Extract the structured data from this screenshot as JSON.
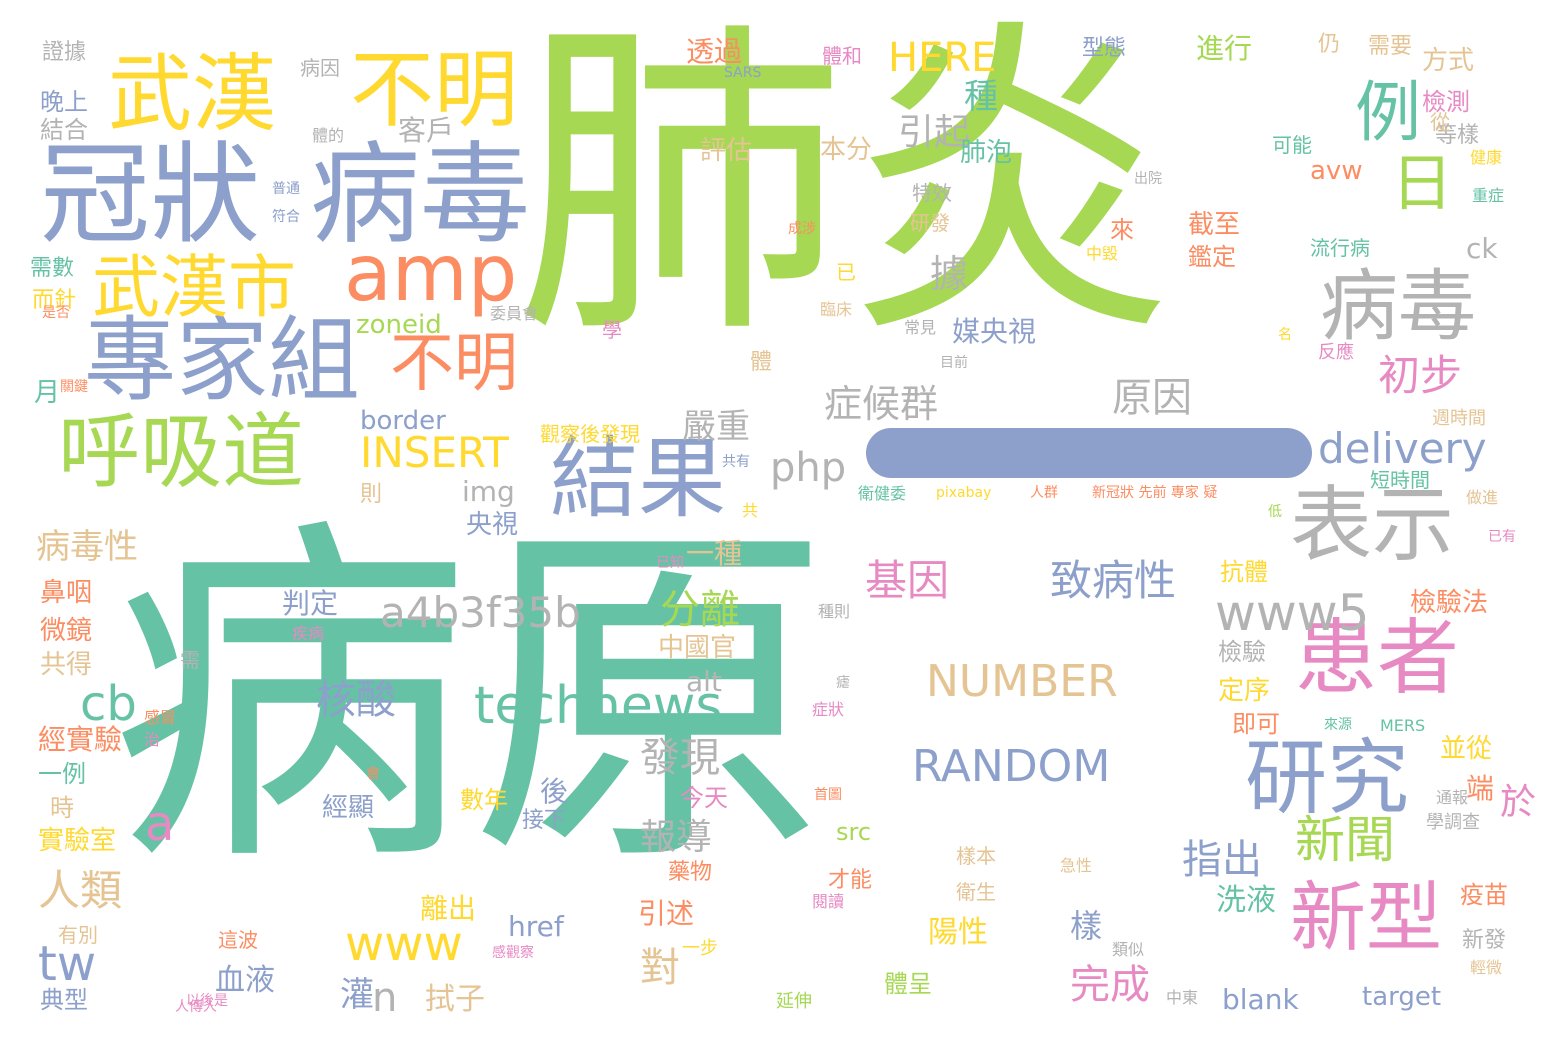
{
  "palette": {
    "green": "#66c2a5",
    "orange": "#fc8d62",
    "blue": "#8da0cb",
    "pink": "#e78ac3",
    "lime": "#a6d854",
    "yellow": "#ffd92f",
    "tan": "#e5c494",
    "gray": "#b3b3b3"
  },
  "bar_color": "#8da0cb",
  "words": [
    {
      "text": "病原",
      "color": "green"
    },
    {
      "text": "肺炎",
      "color": "lime"
    },
    {
      "text": "冠狀",
      "color": "blue"
    },
    {
      "text": "病毒",
      "color": "blue"
    },
    {
      "text": "武漢",
      "color": "yellow"
    },
    {
      "text": "不明",
      "color": "yellow"
    },
    {
      "text": "專家組",
      "color": "blue"
    },
    {
      "text": "呼吸道",
      "color": "lime"
    },
    {
      "text": "武漢市",
      "color": "yellow"
    },
    {
      "text": "amp",
      "color": "orange"
    },
    {
      "text": "結果",
      "color": "blue"
    },
    {
      "text": "不明",
      "color": "orange"
    },
    {
      "text": "例",
      "color": "green"
    },
    {
      "text": "日",
      "color": "lime"
    },
    {
      "text": "病毒",
      "color": "gray"
    },
    {
      "text": "表示",
      "color": "gray"
    },
    {
      "text": "患者",
      "color": "pink"
    },
    {
      "text": "研究",
      "color": "blue"
    },
    {
      "text": "新型",
      "color": "pink"
    },
    {
      "text": "technews",
      "color": "green"
    },
    {
      "text": "a4b3f35b",
      "color": "gray"
    },
    {
      "text": "www5",
      "color": "gray"
    },
    {
      "text": "delivery",
      "color": "blue"
    },
    {
      "text": "INSERT",
      "color": "yellow"
    },
    {
      "text": "NUMBER",
      "color": "tan"
    },
    {
      "text": "RANDOM",
      "color": "blue"
    },
    {
      "text": "HERE",
      "color": "yellow"
    },
    {
      "text": "php",
      "color": "gray"
    },
    {
      "text": "www",
      "color": "yellow"
    },
    {
      "text": "新聞",
      "color": "lime"
    },
    {
      "text": "初步",
      "color": "pink"
    },
    {
      "text": "原因",
      "color": "gray"
    },
    {
      "text": "症候群",
      "color": "gray"
    },
    {
      "text": "基因",
      "color": "pink"
    },
    {
      "text": "致病性",
      "color": "blue"
    },
    {
      "text": "核酸",
      "color": "blue"
    },
    {
      "text": "引起",
      "color": "gray"
    },
    {
      "text": "嚴重",
      "color": "gray"
    },
    {
      "text": "報導",
      "color": "gray"
    },
    {
      "text": "指出",
      "color": "blue"
    },
    {
      "text": "完成",
      "color": "pink"
    },
    {
      "text": "人類",
      "color": "tan"
    },
    {
      "text": "病毒性",
      "color": "tan"
    },
    {
      "text": "客戶",
      "color": "gray"
    },
    {
      "text": "進行",
      "color": "lime"
    },
    {
      "text": "評估",
      "color": "tan"
    },
    {
      "text": "本分",
      "color": "tan"
    },
    {
      "text": "透過",
      "color": "orange"
    },
    {
      "text": "zoneid",
      "color": "lime"
    },
    {
      "text": "border",
      "color": "blue"
    },
    {
      "text": "tw",
      "color": "blue"
    },
    {
      "text": "cb",
      "color": "green"
    },
    {
      "text": "a",
      "color": "pink"
    },
    {
      "text": "n",
      "color": "gray"
    },
    {
      "text": "img",
      "color": "gray"
    },
    {
      "text": "alt",
      "color": "gray"
    },
    {
      "text": "src",
      "color": "lime"
    },
    {
      "text": "href",
      "color": "blue"
    },
    {
      "text": "blank",
      "color": "blue"
    },
    {
      "text": "target",
      "color": "blue"
    },
    {
      "text": "avw",
      "color": "orange"
    },
    {
      "text": "ck",
      "color": "gray"
    },
    {
      "text": "晚上",
      "color": "blue"
    },
    {
      "text": "結合",
      "color": "gray"
    },
    {
      "text": "證據",
      "color": "gray"
    },
    {
      "text": "病因",
      "color": "gray"
    },
    {
      "text": "型態",
      "color": "blue"
    },
    {
      "text": "方式",
      "color": "tan"
    },
    {
      "text": "檢測",
      "color": "pink"
    },
    {
      "text": "等樣",
      "color": "gray"
    },
    {
      "text": "可能",
      "color": "green"
    },
    {
      "text": "流行病",
      "color": "green"
    },
    {
      "text": "截至",
      "color": "orange"
    },
    {
      "text": "鑑定",
      "color": "orange"
    },
    {
      "text": "特效",
      "color": "gray"
    },
    {
      "text": "研發",
      "color": "tan"
    },
    {
      "text": "分離",
      "color": "lime"
    },
    {
      "text": "中國官",
      "color": "tan"
    },
    {
      "text": "一種",
      "color": "tan"
    },
    {
      "text": "央視",
      "color": "blue"
    },
    {
      "text": "判定",
      "color": "blue"
    },
    {
      "text": "鼻咽",
      "color": "orange"
    },
    {
      "text": "微鏡",
      "color": "orange"
    },
    {
      "text": "共得",
      "color": "tan"
    },
    {
      "text": "經實驗",
      "color": "orange"
    },
    {
      "text": "一例",
      "color": "green"
    },
    {
      "text": "實驗室",
      "color": "yellow"
    },
    {
      "text": "有別",
      "color": "tan"
    },
    {
      "text": "典型",
      "color": "blue"
    },
    {
      "text": "血液",
      "color": "blue"
    },
    {
      "text": "灌",
      "color": "blue"
    },
    {
      "text": "拭子",
      "color": "tan"
    },
    {
      "text": "經顯",
      "color": "blue"
    },
    {
      "text": "接下",
      "color": "blue"
    },
    {
      "text": "今天",
      "color": "pink"
    },
    {
      "text": "數年",
      "color": "yellow"
    },
    {
      "text": "引述",
      "color": "orange"
    },
    {
      "text": "離出",
      "color": "yellow"
    },
    {
      "text": "陽性",
      "color": "yellow"
    },
    {
      "text": "洗液",
      "color": "green"
    },
    {
      "text": "並從",
      "color": "yellow"
    },
    {
      "text": "疫苗",
      "color": "orange"
    },
    {
      "text": "檢驗法",
      "color": "orange"
    },
    {
      "text": "抗體",
      "color": "yellow"
    },
    {
      "text": "短時間",
      "color": "green"
    },
    {
      "text": "檢驗",
      "color": "gray"
    },
    {
      "text": "定序",
      "color": "yellow"
    },
    {
      "text": "即可",
      "color": "orange"
    },
    {
      "text": "端",
      "color": "orange"
    },
    {
      "text": "新發",
      "color": "gray"
    },
    {
      "text": "後",
      "color": "blue"
    },
    {
      "text": "對",
      "color": "tan"
    },
    {
      "text": "於",
      "color": "pink"
    },
    {
      "text": "樣",
      "color": "blue"
    },
    {
      "text": "種",
      "color": "green"
    },
    {
      "text": "據",
      "color": "gray"
    },
    {
      "text": "肺泡",
      "color": "green"
    },
    {
      "text": "媒央視",
      "color": "blue"
    },
    {
      "text": "發現",
      "color": "gray"
    },
    {
      "text": "需數",
      "color": "green"
    },
    {
      "text": "而針",
      "color": "yellow"
    },
    {
      "text": "月",
      "color": "green"
    },
    {
      "text": "時",
      "color": "tan"
    },
    {
      "text": "則",
      "color": "tan"
    },
    {
      "text": "仍",
      "color": "tan"
    },
    {
      "text": "需要",
      "color": "tan"
    },
    {
      "text": "從",
      "color": "tan"
    },
    {
      "text": "體和",
      "color": "pink"
    },
    {
      "text": "SARS",
      "color": "blue"
    },
    {
      "text": "體的",
      "color": "gray"
    },
    {
      "text": "來",
      "color": "orange"
    },
    {
      "text": "已",
      "color": "yellow"
    },
    {
      "text": "體",
      "color": "tan"
    },
    {
      "text": "學",
      "color": "pink"
    },
    {
      "text": "觀察後發現",
      "color": "yellow"
    },
    {
      "text": "藥物",
      "color": "orange"
    },
    {
      "text": "才能",
      "color": "orange"
    },
    {
      "text": "樣本",
      "color": "tan"
    },
    {
      "text": "衛生",
      "color": "tan"
    },
    {
      "text": "體呈",
      "color": "lime"
    },
    {
      "text": "延伸",
      "color": "lime"
    },
    {
      "text": "一步",
      "color": "yellow"
    },
    {
      "text": "這波",
      "color": "orange"
    },
    {
      "text": "需",
      "color": "gray"
    },
    {
      "text": "共有",
      "color": "blue"
    },
    {
      "text": "共",
      "color": "yellow"
    },
    {
      "text": "已知",
      "color": "pink"
    },
    {
      "text": "衛健委",
      "color": "green"
    },
    {
      "text": "pixabay",
      "color": "yellow"
    },
    {
      "text": "人群",
      "color": "orange"
    },
    {
      "text": "新冠狀 先前 專家 疑",
      "color": "orange"
    },
    {
      "text": "重症",
      "color": "green"
    },
    {
      "text": "健康",
      "color": "yellow"
    },
    {
      "text": "出院",
      "color": "gray"
    },
    {
      "text": "成涉",
      "color": "orange"
    },
    {
      "text": "中毀",
      "color": "yellow"
    },
    {
      "text": "臨床",
      "color": "tan"
    },
    {
      "text": "常見",
      "color": "gray"
    },
    {
      "text": "目前",
      "color": "gray"
    },
    {
      "text": "名",
      "color": "yellow"
    },
    {
      "text": "反應",
      "color": "pink"
    },
    {
      "text": "週時間",
      "color": "tan"
    },
    {
      "text": "做進",
      "color": "tan"
    },
    {
      "text": "低",
      "color": "lime"
    },
    {
      "text": "已有",
      "color": "pink"
    },
    {
      "text": "種則",
      "color": "gray"
    },
    {
      "text": "疾病",
      "color": "pink"
    },
    {
      "text": "感冒",
      "color": "orange"
    },
    {
      "text": "治",
      "color": "pink"
    },
    {
      "text": "症狀",
      "color": "pink"
    },
    {
      "text": "瘧",
      "color": "gray"
    },
    {
      "text": "來源",
      "color": "green"
    },
    {
      "text": "MERS",
      "color": "green"
    },
    {
      "text": "通報",
      "color": "gray"
    },
    {
      "text": "學調查",
      "color": "gray"
    },
    {
      "text": "首圖",
      "color": "orange"
    },
    {
      "text": "急性",
      "color": "tan"
    },
    {
      "text": "輕微",
      "color": "tan"
    },
    {
      "text": "類似",
      "color": "gray"
    },
    {
      "text": "中東",
      "color": "gray"
    },
    {
      "text": "閱讀",
      "color": "pink"
    },
    {
      "text": "感觀察",
      "color": "pink"
    },
    {
      "text": "以後是",
      "color": "pink"
    },
    {
      "text": "人傳人",
      "color": "pink"
    },
    {
      "text": "會",
      "color": "orange"
    },
    {
      "text": "是否",
      "color": "orange"
    },
    {
      "text": "關鍵",
      "color": "orange"
    },
    {
      "text": "委員會",
      "color": "gray"
    },
    {
      "text": "普通",
      "color": "blue"
    },
    {
      "text": "符合",
      "color": "blue"
    }
  ]
}
